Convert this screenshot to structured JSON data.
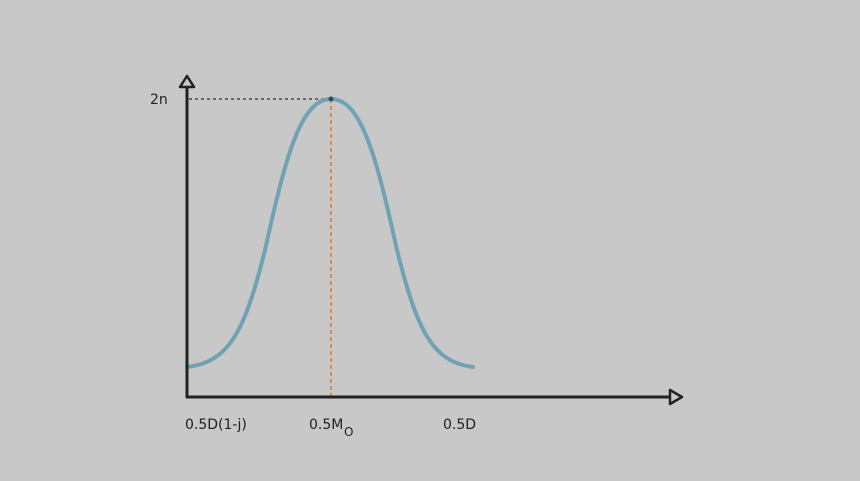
{
  "y_axis": {
    "label": "2n"
  },
  "x_axis": {
    "labels": [
      {
        "text": "0.5D(1-j)"
      },
      {
        "text": "0.5M",
        "subscript": "O"
      },
      {
        "text": "0.5D"
      }
    ]
  }
}
